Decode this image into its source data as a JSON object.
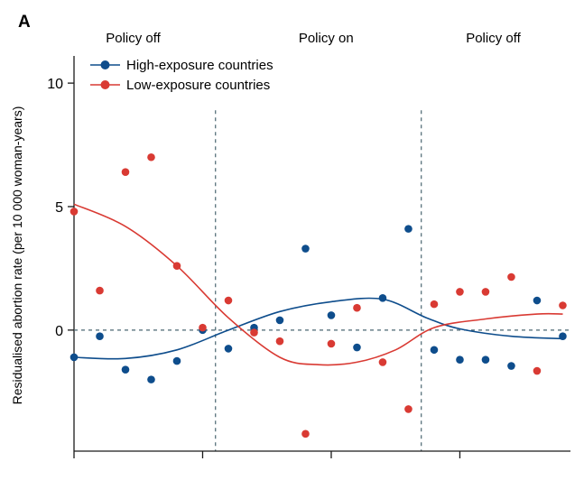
{
  "chart_data": {
    "type": "scatter",
    "panel_label": "A",
    "ylabel": "Residualised abortion rate (per 10 000 woman-years)",
    "xlabel": "",
    "ylim": [
      -4.9,
      11.1
    ],
    "xlim": [
      0,
      19.3
    ],
    "yticks": [
      0,
      5,
      10
    ],
    "ytick_labels": [
      "0",
      "5",
      "10"
    ],
    "xticks": [
      0,
      5,
      10,
      15
    ],
    "grid": false,
    "reference_line_y": 0,
    "phase_boundaries": [
      5.5,
      13.5
    ],
    "phases": [
      {
        "label": "Policy off",
        "center": 2.3
      },
      {
        "label": "Policy on",
        "center": 9.8
      },
      {
        "label": "Policy off",
        "center": 16.3
      }
    ],
    "legend_position": "top-left",
    "series": [
      {
        "name": "High-exposure countries",
        "color": "#0e4d8c",
        "points": [
          {
            "x": 0,
            "y": -1.1
          },
          {
            "x": 1,
            "y": -0.25
          },
          {
            "x": 2,
            "y": -1.6
          },
          {
            "x": 3,
            "y": -2.0
          },
          {
            "x": 4,
            "y": -1.25
          },
          {
            "x": 5,
            "y": 0.0
          },
          {
            "x": 6,
            "y": -0.75
          },
          {
            "x": 7,
            "y": 0.1
          },
          {
            "x": 8,
            "y": 0.4
          },
          {
            "x": 9,
            "y": 3.3
          },
          {
            "x": 10,
            "y": 0.6
          },
          {
            "x": 11,
            "y": -0.7
          },
          {
            "x": 12,
            "y": 1.3
          },
          {
            "x": 13,
            "y": 4.1
          },
          {
            "x": 14,
            "y": -0.8
          },
          {
            "x": 15,
            "y": -1.2
          },
          {
            "x": 16,
            "y": -1.2
          },
          {
            "x": 17,
            "y": -1.45
          },
          {
            "x": 18,
            "y": 1.2
          },
          {
            "x": 19,
            "y": -0.25
          }
        ],
        "trend": [
          {
            "x": 0,
            "y": -1.1
          },
          {
            "x": 2,
            "y": -1.15
          },
          {
            "x": 4,
            "y": -0.8
          },
          {
            "x": 6,
            "y": 0.0
          },
          {
            "x": 8,
            "y": 0.75
          },
          {
            "x": 10,
            "y": 1.15
          },
          {
            "x": 12,
            "y": 1.25
          },
          {
            "x": 13.7,
            "y": 0.5
          },
          {
            "x": 15,
            "y": 0.05
          },
          {
            "x": 17,
            "y": -0.25
          },
          {
            "x": 19,
            "y": -0.35
          }
        ]
      },
      {
        "name": "Low-exposure countries",
        "color": "#d93a33",
        "points": [
          {
            "x": 0,
            "y": 4.8
          },
          {
            "x": 1,
            "y": 1.6
          },
          {
            "x": 2,
            "y": 6.4
          },
          {
            "x": 3,
            "y": 7.0
          },
          {
            "x": 4,
            "y": 2.6
          },
          {
            "x": 5,
            "y": 0.1
          },
          {
            "x": 6,
            "y": 1.2
          },
          {
            "x": 7,
            "y": -0.1
          },
          {
            "x": 8,
            "y": -0.45
          },
          {
            "x": 9,
            "y": -4.2
          },
          {
            "x": 10,
            "y": -0.55
          },
          {
            "x": 11,
            "y": 0.9
          },
          {
            "x": 12,
            "y": -1.3
          },
          {
            "x": 13,
            "y": -3.2
          },
          {
            "x": 14,
            "y": 1.05
          },
          {
            "x": 15,
            "y": 1.55
          },
          {
            "x": 16,
            "y": 1.55
          },
          {
            "x": 17,
            "y": 2.15
          },
          {
            "x": 18,
            "y": -1.65
          },
          {
            "x": 19,
            "y": 1.0
          }
        ],
        "trend": [
          {
            "x": 0,
            "y": 5.1
          },
          {
            "x": 2,
            "y": 4.2
          },
          {
            "x": 4,
            "y": 2.6
          },
          {
            "x": 6,
            "y": 0.5
          },
          {
            "x": 8,
            "y": -1.1
          },
          {
            "x": 9.5,
            "y": -1.4
          },
          {
            "x": 11,
            "y": -1.3
          },
          {
            "x": 12.5,
            "y": -0.8
          },
          {
            "x": 14,
            "y": 0.1
          },
          {
            "x": 16,
            "y": 0.45
          },
          {
            "x": 18,
            "y": 0.65
          },
          {
            "x": 19,
            "y": 0.65
          }
        ]
      }
    ]
  }
}
